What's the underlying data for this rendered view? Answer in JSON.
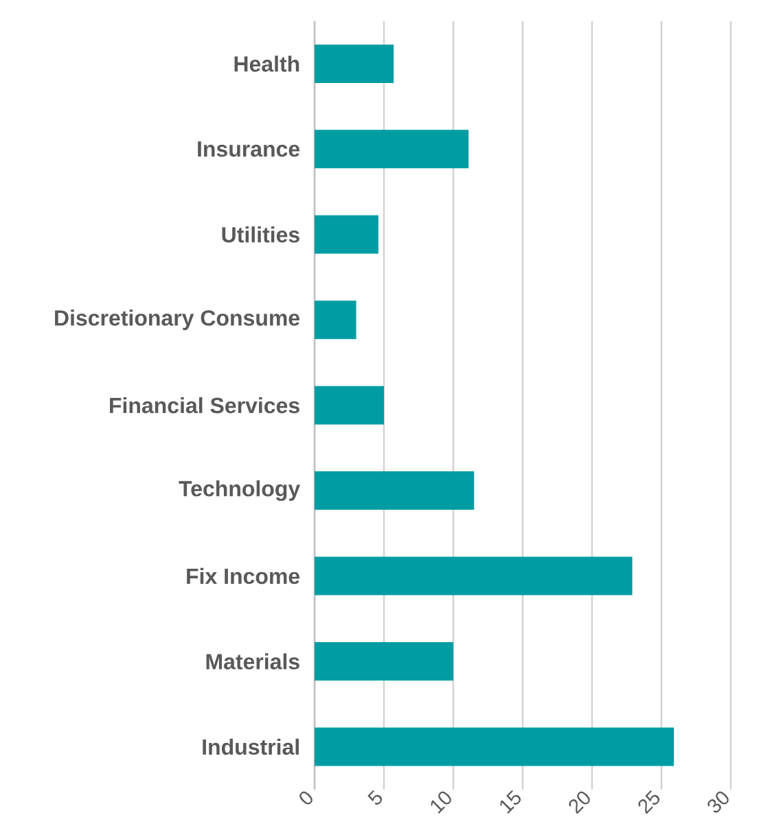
{
  "chart_data": {
    "type": "bar",
    "orientation": "horizontal",
    "categories": [
      "Health",
      "Insurance",
      "Utilities",
      "Discretionary Consume",
      "Financial Services",
      "Technology",
      "Fix Income",
      "Materials",
      "Industrial"
    ],
    "values": [
      5.7,
      11.1,
      4.6,
      3,
      5,
      11.5,
      22.9,
      10,
      25.9
    ],
    "color": "#009ca3",
    "xlim": [
      0,
      30
    ],
    "xticks": [
      0,
      5,
      10,
      15,
      20,
      25,
      30
    ],
    "grid": "x"
  }
}
